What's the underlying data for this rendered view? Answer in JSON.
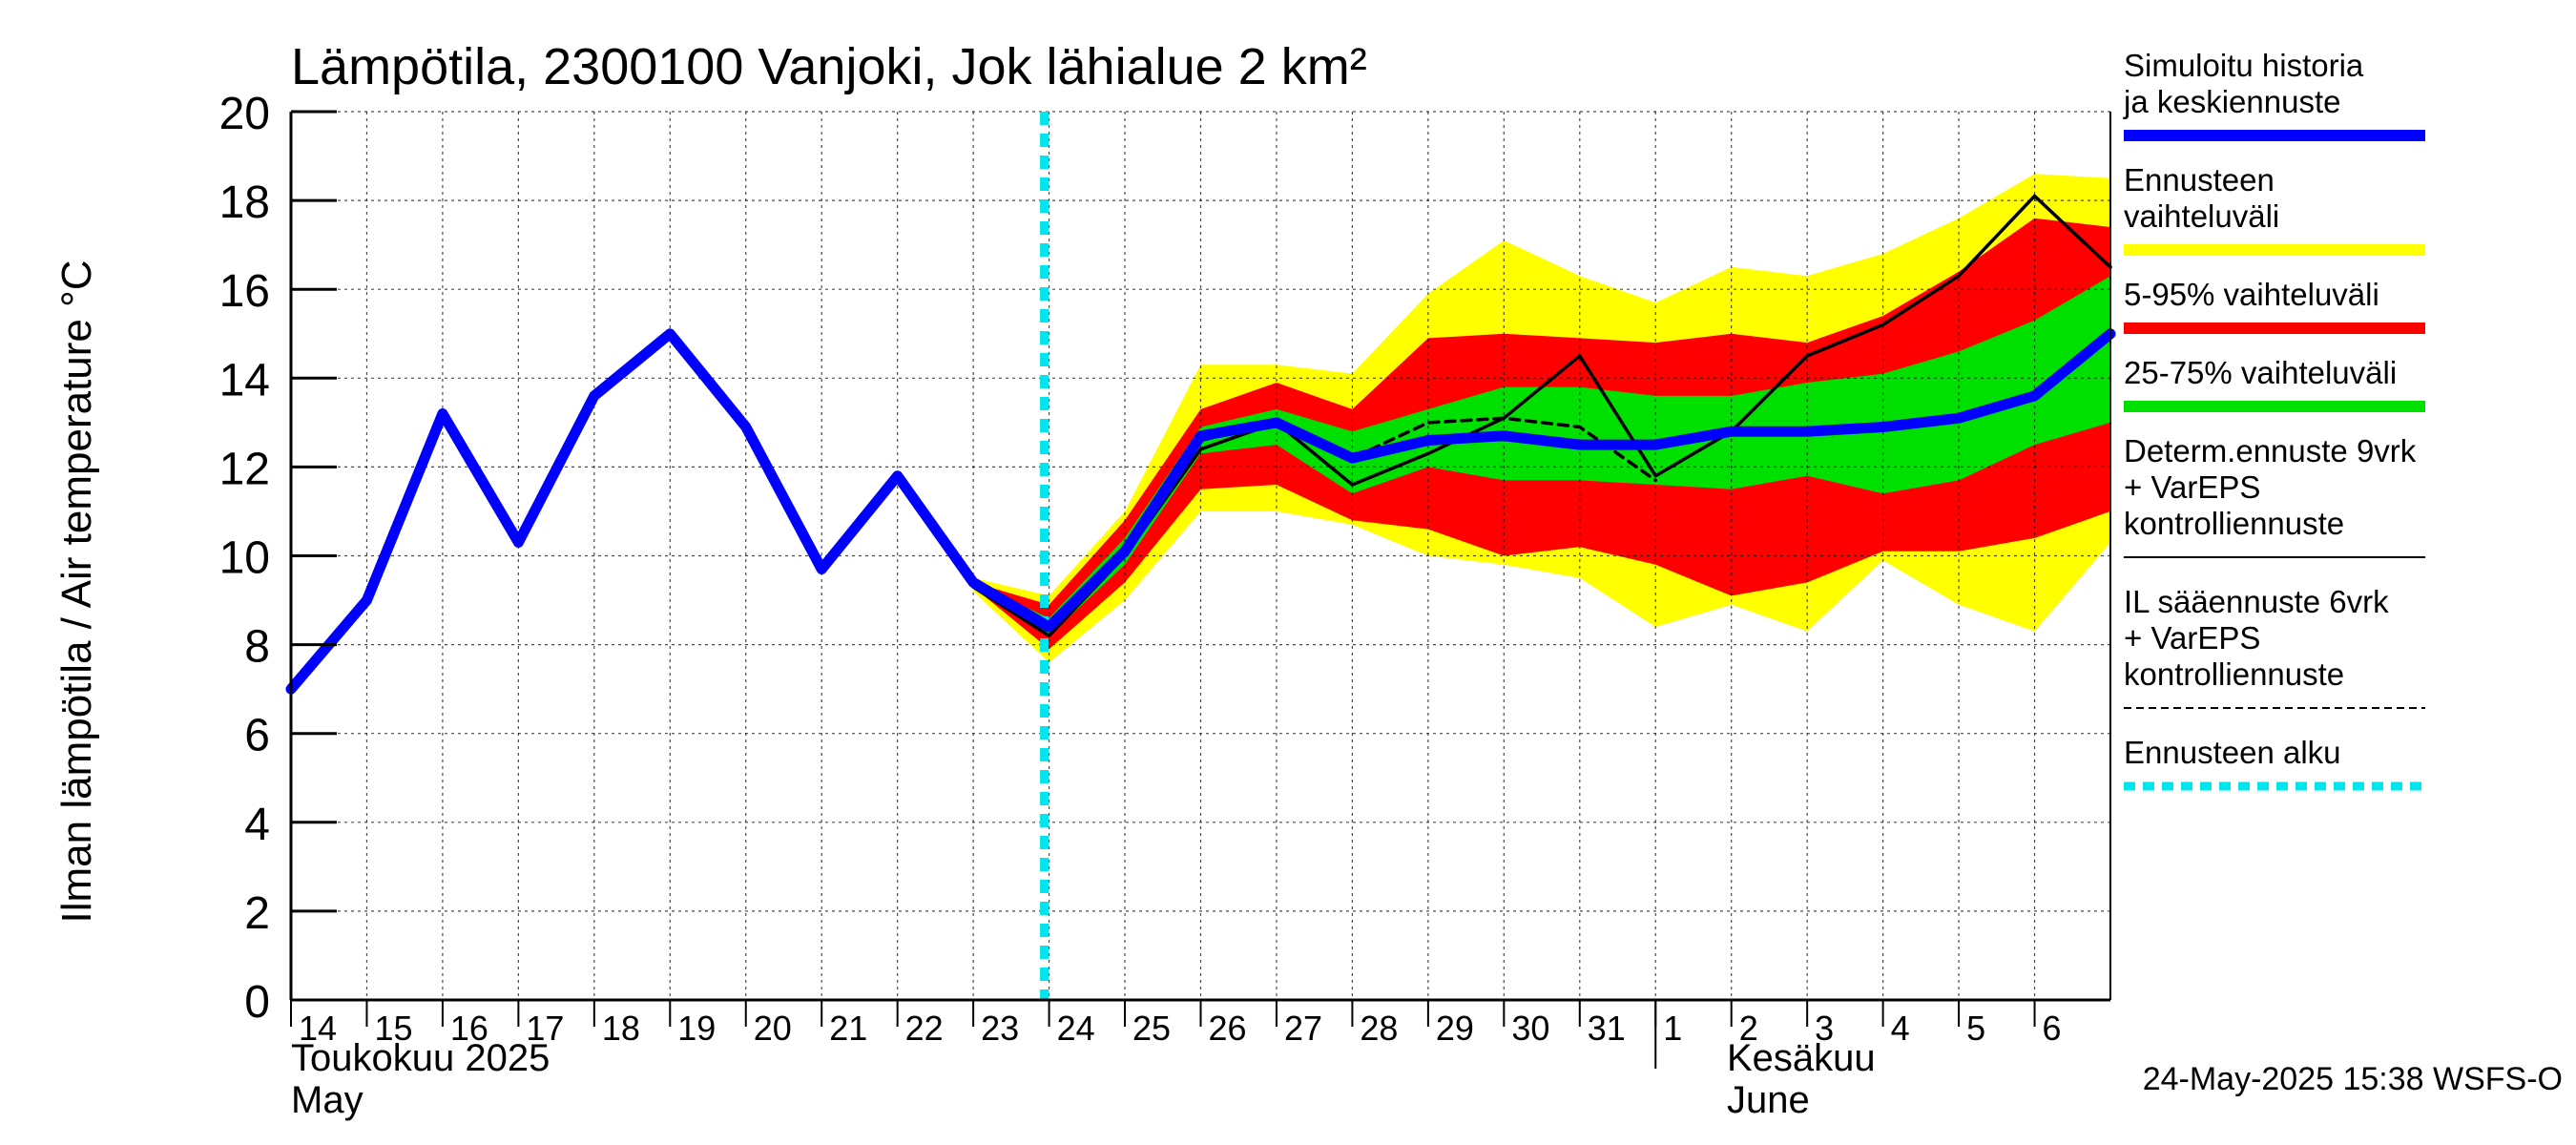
{
  "chart_data": {
    "type": "area",
    "title": "Lämpötila, 2300100 Vanjoki, Jok lähialue 2 km²",
    "ylabel": "Ilman lämpötila / Air temperature   °C",
    "ylim": [
      0,
      20
    ],
    "yticks": [
      "0",
      "2",
      "4",
      "6",
      "8",
      "10",
      "12",
      "14",
      "16",
      "18",
      "20"
    ],
    "x_domain": [
      "2025-05-14",
      "2025-06-07"
    ],
    "x_tick_labels": [
      {
        "date": "2025-05-14",
        "label": "14"
      },
      {
        "date": "2025-05-15",
        "label": "15"
      },
      {
        "date": "2025-05-16",
        "label": "16"
      },
      {
        "date": "2025-05-17",
        "label": "17"
      },
      {
        "date": "2025-05-18",
        "label": "18"
      },
      {
        "date": "2025-05-19",
        "label": "19"
      },
      {
        "date": "2025-05-20",
        "label": "20"
      },
      {
        "date": "2025-05-21",
        "label": "21"
      },
      {
        "date": "2025-05-22",
        "label": "22"
      },
      {
        "date": "2025-05-23",
        "label": "23"
      },
      {
        "date": "2025-05-24",
        "label": "24"
      },
      {
        "date": "2025-05-25",
        "label": "25"
      },
      {
        "date": "2025-05-26",
        "label": "26"
      },
      {
        "date": "2025-05-27",
        "label": "27"
      },
      {
        "date": "2025-05-28",
        "label": "28"
      },
      {
        "date": "2025-05-29",
        "label": "29"
      },
      {
        "date": "2025-05-30",
        "label": "30"
      },
      {
        "date": "2025-05-31",
        "label": "31"
      },
      {
        "date": "2025-06-01",
        "label": "1"
      },
      {
        "date": "2025-06-02",
        "label": "2"
      },
      {
        "date": "2025-06-03",
        "label": "3"
      },
      {
        "date": "2025-06-04",
        "label": "4"
      },
      {
        "date": "2025-06-05",
        "label": "5"
      },
      {
        "date": "2025-06-06",
        "label": "6"
      }
    ],
    "month_labels": {
      "may_fi": "Toukokuu  2025",
      "may_en": "May",
      "june_fi": "Kesäkuu",
      "june_en": "June"
    },
    "forecast_start": "2025-05-24",
    "series": [
      {
        "name": "Ennusteen vaihteluväli",
        "kind": "band",
        "color": "#ffff00",
        "points": [
          [
            "2025-05-23",
            9.2,
            9.5
          ],
          [
            "2025-05-24",
            7.6,
            9.1
          ],
          [
            "2025-05-25",
            9.0,
            11.0
          ],
          [
            "2025-05-26",
            11.0,
            14.3
          ],
          [
            "2025-05-27",
            11.0,
            14.3
          ],
          [
            "2025-05-28",
            10.7,
            14.1
          ],
          [
            "2025-05-29",
            10.0,
            15.9
          ],
          [
            "2025-05-30",
            9.8,
            17.1
          ],
          [
            "2025-05-31",
            9.5,
            16.3
          ],
          [
            "2025-06-01",
            8.4,
            15.7
          ],
          [
            "2025-06-02",
            8.9,
            16.5
          ],
          [
            "2025-06-03",
            8.3,
            16.3
          ],
          [
            "2025-06-04",
            9.9,
            16.8
          ],
          [
            "2025-06-05",
            8.9,
            17.6
          ],
          [
            "2025-06-06",
            8.3,
            18.6
          ],
          [
            "2025-06-07",
            10.3,
            18.5
          ]
        ]
      },
      {
        "name": "5-95% vaihteluväli",
        "kind": "band",
        "color": "#ff0000",
        "points": [
          [
            "2025-05-23",
            9.3,
            9.4
          ],
          [
            "2025-05-24",
            7.9,
            8.9
          ],
          [
            "2025-05-25",
            9.4,
            10.8
          ],
          [
            "2025-05-26",
            11.5,
            13.3
          ],
          [
            "2025-05-27",
            11.6,
            13.9
          ],
          [
            "2025-05-28",
            10.8,
            13.3
          ],
          [
            "2025-05-29",
            10.6,
            14.9
          ],
          [
            "2025-05-30",
            10.0,
            15.0
          ],
          [
            "2025-05-31",
            10.2,
            14.9
          ],
          [
            "2025-06-01",
            9.8,
            14.8
          ],
          [
            "2025-06-02",
            9.1,
            15.0
          ],
          [
            "2025-06-03",
            9.4,
            14.8
          ],
          [
            "2025-06-04",
            10.1,
            15.4
          ],
          [
            "2025-06-05",
            10.1,
            16.4
          ],
          [
            "2025-06-06",
            10.4,
            17.6
          ],
          [
            "2025-06-07",
            11.0,
            17.4
          ]
        ]
      },
      {
        "name": "25-75% vaihteluväli",
        "kind": "band",
        "color": "#00e000",
        "points": [
          [
            "2025-05-23",
            9.3,
            9.4
          ],
          [
            "2025-05-24",
            8.2,
            8.6
          ],
          [
            "2025-05-25",
            9.8,
            10.4
          ],
          [
            "2025-05-26",
            12.3,
            12.9
          ],
          [
            "2025-05-27",
            12.5,
            13.3
          ],
          [
            "2025-05-28",
            11.4,
            12.8
          ],
          [
            "2025-05-29",
            12.0,
            13.3
          ],
          [
            "2025-05-30",
            11.7,
            13.8
          ],
          [
            "2025-05-31",
            11.7,
            13.8
          ],
          [
            "2025-06-01",
            11.6,
            13.6
          ],
          [
            "2025-06-02",
            11.5,
            13.6
          ],
          [
            "2025-06-03",
            11.8,
            13.9
          ],
          [
            "2025-06-04",
            11.4,
            14.1
          ],
          [
            "2025-06-05",
            11.7,
            14.6
          ],
          [
            "2025-06-06",
            12.5,
            15.3
          ],
          [
            "2025-06-07",
            13.0,
            16.3
          ]
        ]
      },
      {
        "name": "IL sääennuste 6vrk  +   VarEPS kontrolliennuste",
        "kind": "line",
        "color": "#000000",
        "dash": true,
        "points": [
          [
            "2025-05-22",
            11.8
          ],
          [
            "2025-05-23",
            9.3
          ],
          [
            "2025-05-24",
            8.3
          ],
          [
            "2025-05-25",
            10.0
          ],
          [
            "2025-05-26",
            12.6
          ],
          [
            "2025-05-27",
            13.0
          ],
          [
            "2025-05-28",
            12.2
          ],
          [
            "2025-05-29",
            13.0
          ],
          [
            "2025-05-30",
            13.1
          ],
          [
            "2025-05-31",
            12.9
          ],
          [
            "2025-06-01",
            11.7
          ]
        ]
      },
      {
        "name": "Determ.ennuste 9vrk + VarEPS kontrolliennuste",
        "kind": "line",
        "color": "#000000",
        "dash": false,
        "points": [
          [
            "2025-05-22",
            11.8
          ],
          [
            "2025-05-23",
            9.3
          ],
          [
            "2025-05-24",
            8.2
          ],
          [
            "2025-05-25",
            10.0
          ],
          [
            "2025-05-26",
            12.4
          ],
          [
            "2025-05-27",
            13.0
          ],
          [
            "2025-05-28",
            11.6
          ],
          [
            "2025-05-29",
            12.3
          ],
          [
            "2025-05-30",
            13.1
          ],
          [
            "2025-05-31",
            14.5
          ],
          [
            "2025-06-01",
            11.8
          ],
          [
            "2025-06-02",
            12.8
          ],
          [
            "2025-06-03",
            14.5
          ],
          [
            "2025-06-04",
            15.2
          ],
          [
            "2025-06-05",
            16.3
          ],
          [
            "2025-06-06",
            18.1
          ],
          [
            "2025-06-07",
            16.5
          ]
        ]
      },
      {
        "name": "Simuloitu historia ja keskiennuste",
        "kind": "line",
        "color": "#0000ff",
        "dash": false,
        "points": [
          [
            "2025-05-14",
            7.0
          ],
          [
            "2025-05-15",
            9.0
          ],
          [
            "2025-05-16",
            13.2
          ],
          [
            "2025-05-17",
            10.3
          ],
          [
            "2025-05-18",
            13.6
          ],
          [
            "2025-05-19",
            15.0
          ],
          [
            "2025-05-20",
            12.9
          ],
          [
            "2025-05-21",
            9.7
          ],
          [
            "2025-05-22",
            11.8
          ],
          [
            "2025-05-23",
            9.4
          ],
          [
            "2025-05-24",
            8.4
          ],
          [
            "2025-05-25",
            10.1
          ],
          [
            "2025-05-26",
            12.7
          ],
          [
            "2025-05-27",
            13.0
          ],
          [
            "2025-05-28",
            12.2
          ],
          [
            "2025-05-29",
            12.6
          ],
          [
            "2025-05-30",
            12.7
          ],
          [
            "2025-05-31",
            12.5
          ],
          [
            "2025-06-01",
            12.5
          ],
          [
            "2025-06-02",
            12.8
          ],
          [
            "2025-06-03",
            12.8
          ],
          [
            "2025-06-04",
            12.9
          ],
          [
            "2025-06-05",
            13.1
          ],
          [
            "2025-06-06",
            13.6
          ],
          [
            "2025-06-07",
            15.0
          ]
        ]
      }
    ],
    "legend": [
      {
        "label": "Simuloitu historia ja keskiennuste",
        "color": "#0000ff",
        "style": "thick"
      },
      {
        "label": "Ennusteen vaihteluväli",
        "color": "#ffff00",
        "style": "thick"
      },
      {
        "label": "5-95% vaihteluväli",
        "color": "#ff0000",
        "style": "thick"
      },
      {
        "label": "25-75% vaihteluväli",
        "color": "#00e000",
        "style": "thick"
      },
      {
        "label": "Determ.ennuste 9vrk + VarEPS kontrolliennuste",
        "color": "#000000",
        "style": "thin"
      },
      {
        "label": "IL sääennuste 6vrk  +   VarEPS kontrolliennuste",
        "color": "#000000",
        "style": "dashed"
      },
      {
        "label": "Ennusteen alku",
        "color": "#00e5ee",
        "style": "dotted-thick"
      }
    ],
    "legend_placement": "right",
    "grid": true,
    "timestamp": "24-May-2025 15:38 WSFS-O"
  }
}
